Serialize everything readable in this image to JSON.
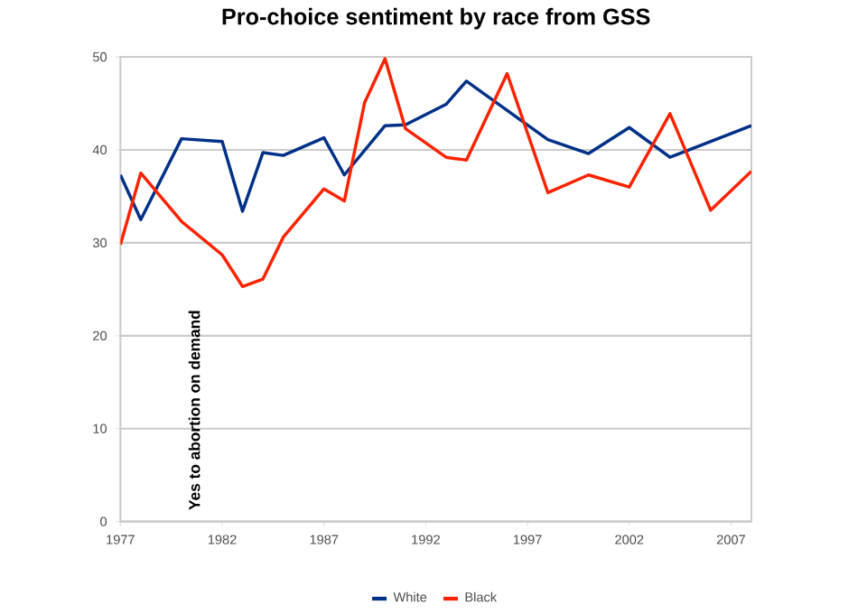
{
  "chart_data": {
    "type": "line",
    "title": "Pro-choice sentiment by race from GSS",
    "ylabel": "Yes to abortion on demand",
    "xlim": [
      1977,
      2008
    ],
    "xticks": [
      1977,
      1982,
      1987,
      1992,
      1997,
      2002,
      2007
    ],
    "ylim": [
      0,
      50
    ],
    "yticks": [
      0,
      10,
      20,
      30,
      40,
      50
    ],
    "grid": "y",
    "legend": "bottom",
    "marker": "none",
    "line_style": "solid",
    "series": [
      {
        "name": "White",
        "color": "#003087",
        "x": [
          1977,
          1978,
          1980,
          1982,
          1983,
          1984,
          1985,
          1987,
          1988,
          1990,
          1991,
          1993,
          1994,
          1998,
          2000,
          2002,
          2004,
          2008
        ],
        "values": [
          37.3,
          32.5,
          41.2,
          40.9,
          33.4,
          39.7,
          39.4,
          41.3,
          37.3,
          42.6,
          42.7,
          44.9,
          47.4,
          41.1,
          39.6,
          42.4,
          39.2,
          42.6
        ]
      },
      {
        "name": "Black",
        "color": "#ff2200",
        "x": [
          1977,
          1978,
          1980,
          1982,
          1983,
          1984,
          1985,
          1987,
          1988,
          1989,
          1990,
          1991,
          1993,
          1994,
          1996,
          1998,
          2000,
          2002,
          2004,
          2006,
          2008
        ],
        "values": [
          29.8,
          37.5,
          32.3,
          28.7,
          25.3,
          26.1,
          30.6,
          35.8,
          34.5,
          45.1,
          49.8,
          42.3,
          39.2,
          38.9,
          48.2,
          35.4,
          37.3,
          36.0,
          43.9,
          33.5,
          37.7
        ]
      }
    ]
  }
}
